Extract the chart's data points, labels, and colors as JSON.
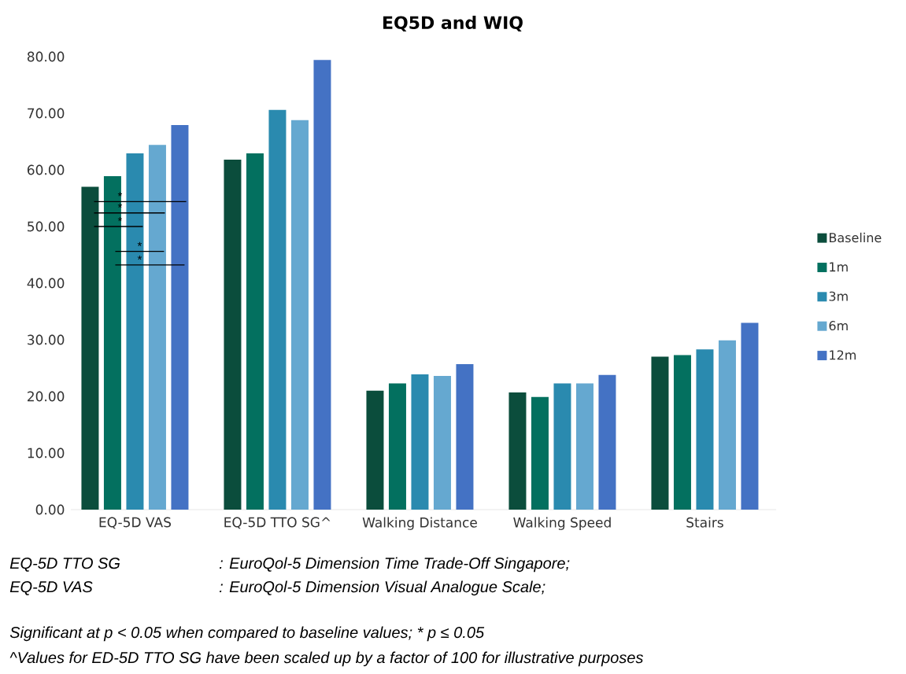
{
  "chart_data": {
    "type": "bar",
    "title": "EQ5D and WIQ",
    "categories": [
      "EQ-5D VAS",
      "EQ-5D TTO SG^",
      "Walking Distance",
      "Walking Speed",
      "Stairs"
    ],
    "series": [
      {
        "name": "Baseline",
        "color": "#0b4d3c",
        "values": [
          57.0,
          61.8,
          21.0,
          20.7,
          27.0
        ]
      },
      {
        "name": "1m",
        "color": "#03705f",
        "values": [
          58.9,
          62.9,
          22.3,
          19.9,
          27.3
        ]
      },
      {
        "name": "3m",
        "color": "#2a8aaf",
        "values": [
          62.9,
          70.6,
          23.9,
          22.3,
          28.3
        ]
      },
      {
        "name": "6m",
        "color": "#65a8d0",
        "values": [
          64.4,
          68.8,
          23.6,
          22.3,
          29.9
        ]
      },
      {
        "name": "12m",
        "color": "#4472c4",
        "values": [
          67.9,
          79.4,
          25.7,
          23.8,
          33.0
        ]
      }
    ],
    "ylim": [
      0,
      80
    ],
    "yticks": [
      {
        "value": 0,
        "label": "0.00"
      },
      {
        "value": 10,
        "label": "10.00"
      },
      {
        "value": 20,
        "label": "20.00"
      },
      {
        "value": 30,
        "label": "30.00"
      },
      {
        "value": 40,
        "label": "40.00"
      },
      {
        "value": 50,
        "label": "50.00"
      },
      {
        "value": 60,
        "label": "60.00"
      },
      {
        "value": 70,
        "label": "70.00"
      },
      {
        "value": 80,
        "label": "80.00"
      }
    ],
    "legend": "right",
    "annotations": [
      "*",
      "*",
      "*",
      "*",
      "*",
      "EQ-5D TTO SG",
      ": EuroQol-5 Dimension Time Trade-Off Singapore;",
      "EQ-5D VAS",
      ": EuroQol-5 Dimension Visual Analogue Scale;",
      "Significant at p < 0.05 when compared to baseline values; * p ≤ 0.05",
      "^Values for ED-5D TTO SG have been scaled up by a factor of 100 for illustrative purposes"
    ]
  }
}
